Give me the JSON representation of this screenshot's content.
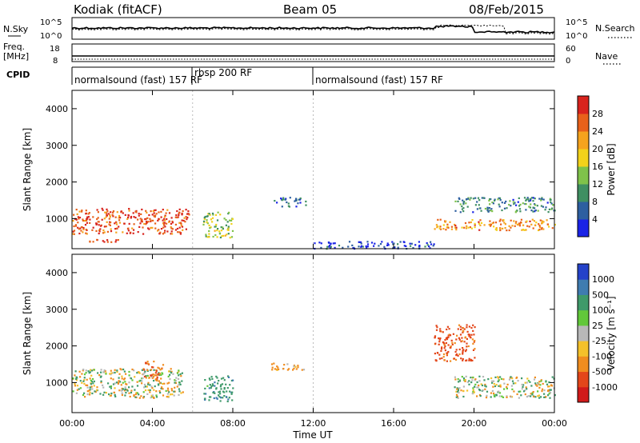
{
  "header": {
    "site": "Kodiak (fitACF)",
    "beam": "Beam 05",
    "date": "08/Feb/2015"
  },
  "summary_panel": {
    "left_label": "N.Sky",
    "right_label": "N.Search",
    "ticks_left": [
      "10^5",
      "10^0"
    ],
    "ticks_right": [
      "10^5",
      "10^0"
    ]
  },
  "freq_panel": {
    "left_label_1": "Freq.",
    "left_label_2": "[MHz]",
    "right_label": "Nave",
    "ticks_left": [
      "18",
      "8"
    ],
    "ticks_right": [
      "60",
      "0"
    ]
  },
  "cpid": {
    "label": "CPID",
    "modes": [
      {
        "name": "normalsound (fast) 157 RF"
      },
      {
        "name": "rbsp 200 RF"
      },
      {
        "name": "normalsound (fast) 157 RF"
      }
    ]
  },
  "power_panel": {
    "ylabel": "Slant Range [km]",
    "yticks": [
      "1000",
      "2000",
      "3000",
      "4000"
    ],
    "colorbar": {
      "label": "Power [dB]",
      "ticks": [
        "4",
        "8",
        "12",
        "16",
        "20",
        "24",
        "28"
      ],
      "colors": [
        "#1a23e6",
        "#2d5fa0",
        "#3f8f62",
        "#7fc24a",
        "#f2d21b",
        "#f5a31d",
        "#e8611a",
        "#d8231d"
      ]
    }
  },
  "velocity_panel": {
    "ylabel": "Slant Range [km]",
    "yticks": [
      "1000",
      "2000",
      "3000",
      "4000"
    ],
    "colorbar": {
      "label": "Velocity [m s⁻¹]",
      "ticks": [
        "1000",
        "500",
        "100",
        "25",
        "-25",
        "-100",
        "-500",
        "-1000"
      ],
      "colors": [
        "#2442c9",
        "#3f7cb0",
        "#3f9a6a",
        "#62c83a",
        "#b8b8b8",
        "#f4c12a",
        "#f08d1f",
        "#e3461a",
        "#d11a1a"
      ]
    }
  },
  "x_axis": {
    "label": "Time UT",
    "ticks": [
      "00:00",
      "04:00",
      "08:00",
      "12:00",
      "16:00",
      "20:00",
      "00:00"
    ]
  },
  "chart_data": [
    {
      "type": "line",
      "title": "",
      "xlabel": "",
      "ylabel": "N.Sky",
      "x_range": [
        "00:00",
        "24:00"
      ],
      "note_series": [
        "N.Sky (solid)",
        "N.Search (dotted)"
      ]
    },
    {
      "type": "heatmap",
      "title": "Kodiak (fitACF) Beam 05 08/Feb/2015",
      "xlabel": "Time UT",
      "ylabel": "Slant Range [km]",
      "quantity": "Power [dB]",
      "x_range_hours": [
        0,
        24
      ],
      "y_range_km": [
        180,
        4500
      ],
      "colorbar_range": [
        0,
        30
      ],
      "features": [
        {
          "t_start": 0.0,
          "t_end": 5.8,
          "range_km": [
            600,
            1300
          ],
          "value": 26
        },
        {
          "t_start": 0.7,
          "t_end": 2.5,
          "range_km": [
            350,
            450
          ],
          "value": 28
        },
        {
          "t_start": 6.5,
          "t_end": 8.0,
          "range_km": [
            500,
            1200
          ],
          "value": 14
        },
        {
          "t_start": 10.0,
          "t_end": 11.6,
          "range_km": [
            1350,
            1600
          ],
          "value": 6
        },
        {
          "t_start": 12.0,
          "t_end": 18.0,
          "range_km": [
            200,
            400
          ],
          "value": 4
        },
        {
          "t_start": 18.0,
          "t_end": 24.0,
          "range_km": [
            700,
            1000
          ],
          "value": 22
        },
        {
          "t_start": 19.0,
          "t_end": 24.0,
          "range_km": [
            1200,
            1600
          ],
          "value": 8
        }
      ]
    },
    {
      "type": "heatmap",
      "title": "",
      "xlabel": "Time UT",
      "ylabel": "Slant Range [km]",
      "quantity": "Velocity [m s-1]",
      "x_range_hours": [
        0,
        24
      ],
      "y_range_km": [
        180,
        4500
      ],
      "colorbar_range": [
        -1000,
        1000
      ],
      "features": [
        {
          "t_start": 0.0,
          "t_end": 5.5,
          "range_km": [
            600,
            1400
          ],
          "value": 0
        },
        {
          "t_start": 3.5,
          "t_end": 4.5,
          "range_km": [
            1100,
            1600
          ],
          "value": -300
        },
        {
          "t_start": 6.5,
          "t_end": 8.0,
          "range_km": [
            500,
            1200
          ],
          "value": 200
        },
        {
          "t_start": 9.8,
          "t_end": 11.6,
          "range_km": [
            1350,
            1550
          ],
          "value": -100
        },
        {
          "t_start": 18.0,
          "t_end": 20.0,
          "range_km": [
            1600,
            2600
          ],
          "value": -400
        },
        {
          "t_start": 19.0,
          "t_end": 24.0,
          "range_km": [
            600,
            1200
          ],
          "value": 0
        }
      ]
    }
  ]
}
